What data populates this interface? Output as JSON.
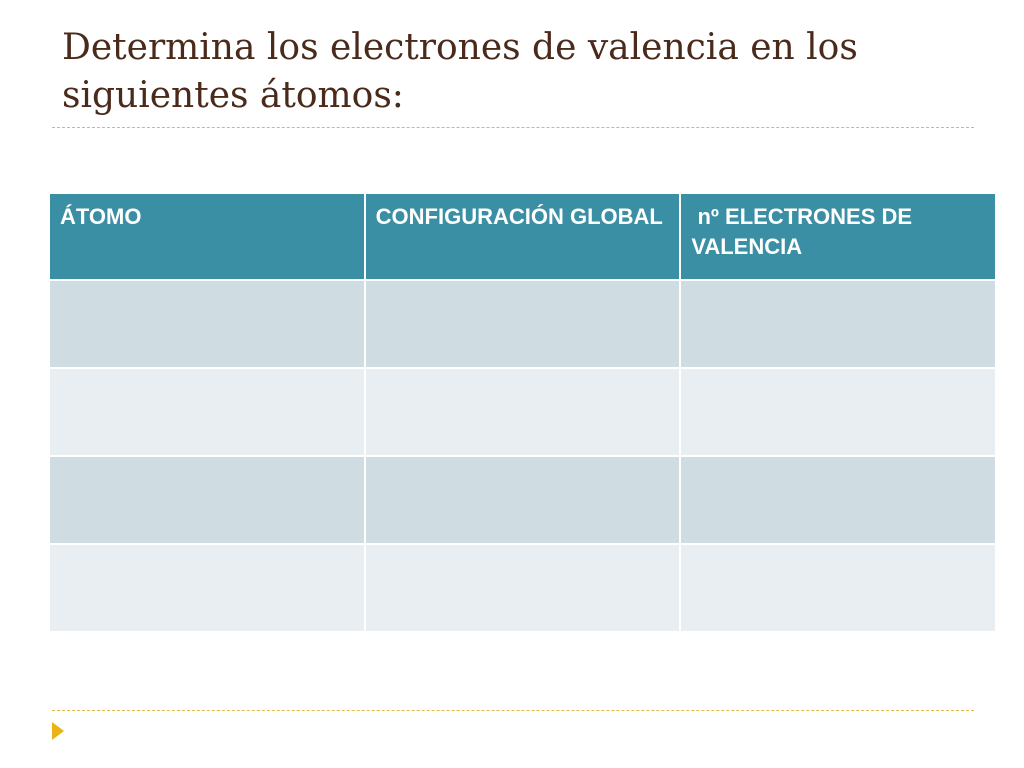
{
  "slide": {
    "title": "Determina los electrones de valencia en los siguientes átomos:"
  },
  "table": {
    "headers": [
      "ÁTOMO",
      "CONFIGURACIÓN GLOBAL",
      " nº ELECTRONES DE VALENCIA"
    ],
    "rows": [
      [
        "",
        "",
        ""
      ],
      [
        "",
        "",
        ""
      ],
      [
        "",
        "",
        ""
      ],
      [
        "",
        "",
        ""
      ]
    ]
  },
  "colors": {
    "title": "#4a2a1b",
    "header_fill": "#3b8fa5",
    "row_band_dark": "#cfdce1",
    "row_band_light": "#e8eef1",
    "accent": "#e2b948",
    "bullet": "#e8b417"
  },
  "icons": {
    "bullet": "triangle-bullet-icon"
  }
}
